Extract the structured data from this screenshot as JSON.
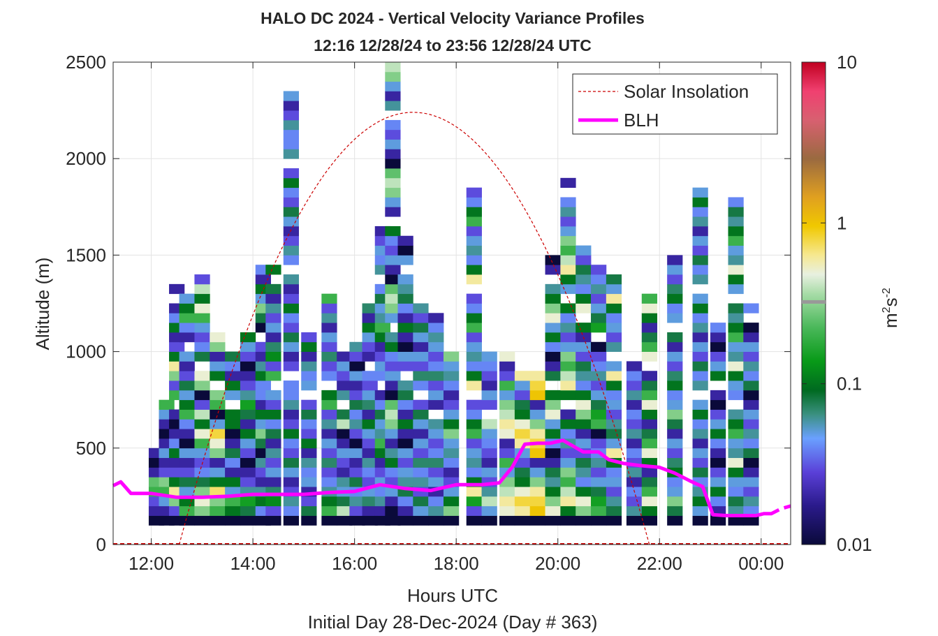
{
  "chart_data": {
    "type": "heatmap",
    "title": "HALO DC 2024 - Vertical Velocity Variance Profiles",
    "subtitle": "12:16 12/28/24 to 23:56 12/28/24  UTC",
    "xlabel": "Hours UTC",
    "xlabel2": "Initial Day 28-Dec-2024 (Day # 363)",
    "ylabel": "Altitude (m)",
    "colorbar_label": "m²s⁻²",
    "x_range_hours": [
      11.25,
      24.58
    ],
    "ylim": [
      0,
      2500
    ],
    "x_ticks": [
      12,
      14,
      16,
      18,
      20,
      22,
      24
    ],
    "x_tick_labels": [
      "12:00",
      "14:00",
      "16:00",
      "18:00",
      "20:00",
      "22:00",
      "00:00"
    ],
    "y_ticks": [
      0,
      500,
      1000,
      1500,
      2000,
      2500
    ],
    "y_tick_labels": [
      "0",
      "500",
      "1000",
      "1500",
      "2000",
      "2500"
    ],
    "color_scale": "log",
    "clim": [
      0.01,
      10
    ],
    "cbar_ticks": [
      0.01,
      0.1,
      1,
      10
    ],
    "cbar_tick_labels": [
      "0.01",
      "0.1",
      "1",
      "10"
    ],
    "grid": true,
    "legend_position": "top-right",
    "series": [
      {
        "name": "Solar Insolation",
        "style": "dashed",
        "color": "#cc0000"
      },
      {
        "name": "BLH",
        "style": "solid",
        "color": "#ff00ff"
      }
    ],
    "blh_hours": [
      11.25,
      11.4,
      11.6,
      12.0,
      12.5,
      13.0,
      13.5,
      14.0,
      14.5,
      15.0,
      15.5,
      16.0,
      16.5,
      17.0,
      17.5,
      18.0,
      18.5,
      18.85,
      19.1,
      19.35,
      19.6,
      19.85,
      20.1,
      20.3,
      20.5,
      20.8,
      21.0,
      21.3,
      21.6,
      22.0,
      22.3,
      22.6,
      22.85,
      23.05,
      23.3,
      23.6,
      23.9,
      24.05,
      24.2,
      24.35
    ],
    "blh_values_m": [
      305,
      325,
      265,
      265,
      245,
      245,
      250,
      260,
      260,
      260,
      270,
      275,
      310,
      290,
      280,
      310,
      310,
      320,
      400,
      520,
      525,
      525,
      540,
      510,
      480,
      480,
      440,
      420,
      410,
      400,
      370,
      330,
      300,
      155,
      150,
      150,
      150,
      160,
      160,
      180
    ],
    "solar_sunrise_h": 12.55,
    "solar_sunset_h": 21.8,
    "solar_peak_h": 17.15,
    "solar_peak_display_m": 2240,
    "columns": [
      {
        "t": 12.1,
        "top": 500,
        "w": [
          0.02,
          0.03,
          0.2,
          0.25,
          0.02,
          0.01,
          0.02
        ]
      },
      {
        "t": 12.3,
        "top": 760,
        "w": [
          0.02,
          0.05,
          0.2,
          0.3,
          0.03,
          0.02,
          0.05,
          0.02,
          0.01
        ]
      },
      {
        "t": 12.5,
        "top": 1360,
        "w": [
          0.03,
          0.3,
          0.6,
          0.1,
          0.03,
          0.02,
          0.1,
          0.04,
          0.02,
          0.01,
          0.02,
          0.06,
          0.2
        ]
      },
      {
        "t": 12.7,
        "top": 1320,
        "w": [
          0.2,
          0.1,
          0.05,
          0.08,
          0.03,
          0.02,
          0.05,
          0.01,
          0.02,
          0.04
        ]
      },
      {
        "t": 13.0,
        "top": 1400,
        "w": [
          0.3,
          0.5,
          0.3,
          0.08,
          0.04,
          0.03,
          0.05,
          0.2,
          0.5,
          0.1,
          0.4,
          0.03,
          0.01
        ]
      },
      {
        "t": 13.3,
        "top": 1100,
        "w": [
          0.2,
          0.3,
          0.7,
          0.1,
          0.05,
          0.02,
          0.3,
          0.5,
          0.8,
          0.05,
          0.01
        ]
      },
      {
        "t": 13.6,
        "top": 1000,
        "w": [
          0.1,
          0.2,
          0.05,
          0.1,
          0.02,
          0.04,
          0.08,
          0.02,
          0.01,
          0.1
        ]
      },
      {
        "t": 13.9,
        "top": 1100,
        "w": [
          0.08,
          0.15,
          0.06,
          0.03,
          0.02,
          0.01,
          0.03,
          0.05,
          0.1,
          0.02
        ]
      },
      {
        "t": 14.2,
        "top": 1450,
        "w": [
          0.04,
          0.1,
          0.06,
          0.02,
          0.03,
          0.06,
          0.01,
          0.08,
          0.3,
          0.05,
          0.1,
          0.02,
          0.04
        ]
      },
      {
        "t": 14.4,
        "top": 1440,
        "w": [
          0.03,
          0.12,
          0.07,
          0.02,
          0.05,
          0.03,
          0.06,
          0.02,
          0.08,
          0.04,
          0.1,
          0.03,
          0.05,
          0.1,
          0.2
        ]
      },
      {
        "t": 14.75,
        "top": 2350,
        "w": [
          0.04,
          0.06,
          0.03,
          0.02,
          0.05,
          0.08,
          0.03,
          0.04,
          0.1,
          0.03,
          0.02,
          0.06,
          0.04
        ]
      },
      {
        "t": 15.1,
        "top": 1120,
        "w": [
          0.08,
          0.03,
          0.02,
          0.05,
          0.04,
          0.06,
          0.02,
          0.1,
          0.03,
          0.04
        ]
      },
      {
        "t": 15.5,
        "top": 1290,
        "w": [
          0.2,
          0.1,
          0.06,
          0.04,
          0.03,
          0.07,
          0.03,
          0.05,
          0.02,
          0.06,
          0.03
        ]
      },
      {
        "t": 15.8,
        "top": 1000,
        "w": [
          0.4,
          0.08,
          0.05,
          0.06,
          0.02,
          0.03,
          0.05,
          0.02,
          0.01
        ]
      },
      {
        "t": 16.05,
        "top": 1040,
        "w": [
          0.03,
          0.06,
          0.04,
          0.08,
          0.03,
          0.02,
          0.05,
          0.01
        ]
      },
      {
        "t": 16.3,
        "top": 1260,
        "w": [
          0.02,
          0.07,
          0.05,
          0.03,
          0.04,
          0.06,
          0.02,
          0.03,
          0.05,
          0.1
        ]
      },
      {
        "t": 16.55,
        "top": 1650,
        "w": [
          0.02,
          0.06,
          0.04,
          0.05,
          0.03,
          0.02,
          0.1,
          0.2,
          0.06,
          0.05,
          0.08,
          0.04
        ]
      },
      {
        "t": 16.75,
        "top": 2490,
        "w": [
          0.01,
          0.02,
          0.05,
          0.03,
          0.04,
          0.1,
          0.06,
          0.02,
          0.05,
          0.3,
          0.4,
          0.25
        ]
      },
      {
        "t": 17.0,
        "top": 1600,
        "w": [
          0.02,
          0.04,
          0.08,
          0.06,
          0.05,
          0.03,
          0.05,
          0.01,
          0.02,
          0.1
        ]
      },
      {
        "t": 17.3,
        "top": 1230,
        "w": [
          0.05,
          0.08,
          0.03,
          0.06,
          0.04,
          0.07,
          0.03,
          0.05,
          0.02
        ]
      },
      {
        "t": 17.6,
        "top": 1200,
        "w": [
          0.06,
          0.04,
          0.02,
          0.05,
          0.03,
          0.07,
          0.04,
          0.03,
          0.05
        ]
      },
      {
        "t": 17.9,
        "top": 1000,
        "w": [
          0.3,
          0.1,
          0.05,
          0.03,
          0.02,
          0.04,
          0.06,
          0.05
        ]
      },
      {
        "t": 18.35,
        "top": 1860,
        "w": [
          0.03,
          0.15,
          0.6,
          0.1,
          0.04,
          0.06,
          0.05,
          0.03,
          0.2,
          0.1,
          0.04
        ]
      },
      {
        "t": 18.65,
        "top": 1000,
        "w": [
          0.05,
          0.4,
          0.06,
          0.03,
          0.05,
          0.02,
          0.03,
          0.04
        ]
      },
      {
        "t": 19.0,
        "top": 1000,
        "w": [
          0.5,
          0.6,
          0.4,
          0.3,
          0.05,
          0.2,
          0.03,
          0.02
        ]
      },
      {
        "t": 19.3,
        "top": 900,
        "w": [
          0.6,
          0.8,
          0.5,
          0.1,
          0.08,
          0.03,
          0.05
        ]
      },
      {
        "t": 19.6,
        "top": 900,
        "w": [
          1.0,
          0.8,
          0.6,
          0.3,
          0.05,
          0.02
        ]
      },
      {
        "t": 19.9,
        "top": 1500,
        "w": [
          0.5,
          0.3,
          0.1,
          0.06,
          0.08,
          0.02,
          0.01,
          0.04,
          0.1,
          0.05
        ]
      },
      {
        "t": 20.2,
        "top": 1890,
        "w": [
          0.1,
          0.6,
          0.4,
          0.2,
          0.3,
          0.05,
          0.03,
          0.06,
          0.04,
          0.1,
          0.02,
          0.05
        ]
      },
      {
        "t": 20.5,
        "top": 1550,
        "w": [
          0.3,
          0.5,
          0.1,
          0.04,
          0.06,
          0.08,
          0.03,
          0.05,
          0.02,
          0.1
        ]
      },
      {
        "t": 20.8,
        "top": 1450,
        "w": [
          0.2,
          0.15,
          0.08,
          0.05,
          0.03,
          0.06,
          0.04,
          0.03,
          0.01
        ]
      },
      {
        "t": 21.1,
        "top": 1400,
        "w": [
          0.08,
          0.06,
          0.03,
          0.05,
          0.04,
          0.1,
          0.6,
          0.05
        ]
      },
      {
        "t": 21.5,
        "top": 950,
        "w": [
          0.06,
          0.03,
          0.04,
          0.02
        ]
      },
      {
        "t": 21.8,
        "top": 1300,
        "w": [
          0.1,
          0.5,
          0.2,
          0.08,
          0.02
        ]
      },
      {
        "t": 22.3,
        "top": 1500,
        "w": [
          0.08,
          0.3,
          0.05,
          0.04,
          0.1,
          0.07,
          0.03,
          0.05,
          0.02
        ]
      },
      {
        "t": 22.8,
        "top": 1900,
        "w": [
          0.05,
          0.1,
          0.06,
          0.04,
          0.08,
          0.03,
          0.05,
          0.02,
          0.06,
          0.04,
          0.1
        ]
      },
      {
        "t": 23.15,
        "top": 1150,
        "w": [
          0.02,
          0.04,
          0.1,
          0.05,
          0.03,
          0.01
        ]
      },
      {
        "t": 23.5,
        "top": 1800,
        "w": [
          0.06,
          0.08,
          0.04,
          0.05,
          0.1,
          0.5,
          0.06,
          0.05,
          0.2,
          0.1
        ]
      },
      {
        "t": 23.8,
        "top": 1230,
        "w": [
          0.04,
          0.06,
          0.03,
          0.05,
          0.02,
          0.01,
          0.08
        ]
      }
    ]
  },
  "legend": {
    "solar_label": "Solar Insolation",
    "blh_label": "BLH"
  }
}
